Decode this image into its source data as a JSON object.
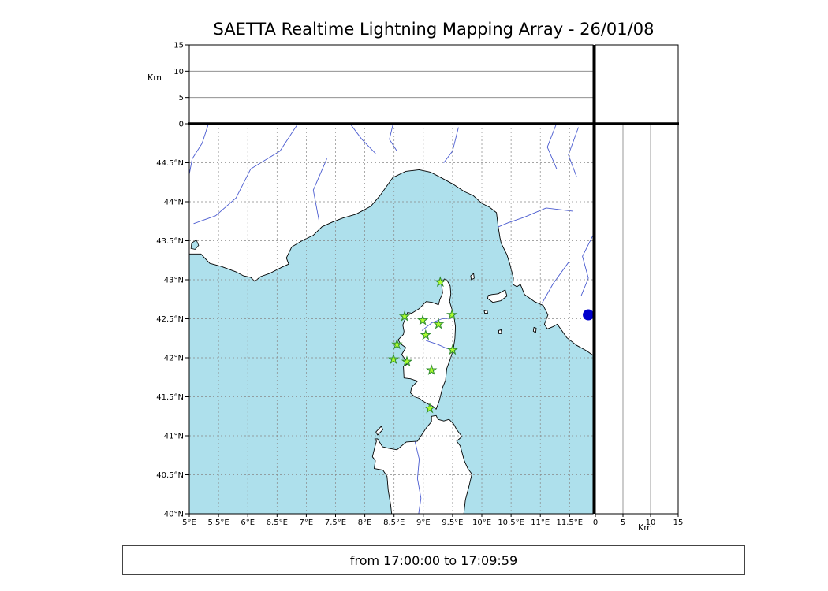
{
  "title": "SAETTA Realtime Lightning Mapping Array - 26/01/08",
  "status_bar": {
    "text": "from 17:00:00 to 17:09:59"
  },
  "labels": {
    "alt_axis_left": "Km",
    "alt_axis_bottom": "Km"
  },
  "colors": {
    "sea": "#aee0ec",
    "land": "#ffffff",
    "coast": "#000000",
    "river": "#4a5bd0",
    "grid": "#888888",
    "station_fill": "#adff2f",
    "station_edge": "#2e8b2e",
    "detection": "#0000cd"
  },
  "map_axes": {
    "lon_range": [
      5.0,
      11.9
    ],
    "lat_range": [
      40.0,
      45.0
    ],
    "lon_ticks": [
      5,
      5.5,
      6,
      6.5,
      7,
      7.5,
      8,
      8.5,
      9,
      9.5,
      10,
      10.5,
      11,
      11.5
    ],
    "lon_tick_labels": [
      "5°E",
      "5.5°E",
      "6°E",
      "6.5°E",
      "7°E",
      "7.5°E",
      "8°E",
      "8.5°E",
      "9°E",
      "9.5°E",
      "10°E",
      "10.5°E",
      "11°E",
      "11.5°E"
    ],
    "lat_ticks": [
      40,
      40.5,
      41,
      41.5,
      42,
      42.5,
      43,
      43.5,
      44,
      44.5
    ],
    "lat_tick_labels": [
      "40°N",
      "40.5°N",
      "41°N",
      "41.5°N",
      "42°N",
      "42.5°N",
      "43°N",
      "43.5°N",
      "44°N",
      "44.5°N"
    ]
  },
  "alt_axes": {
    "range": [
      0,
      15
    ],
    "ticks": [
      0,
      5,
      10,
      15
    ],
    "tick_labels": [
      "0",
      "5",
      "10",
      "15"
    ],
    "gridlines": [
      5,
      10
    ],
    "unit": "Km"
  },
  "chart_data": {
    "type": "scatter",
    "title": "SAETTA Realtime Lightning Mapping Array - 26/01/08",
    "time_window": {
      "from": "17:00:00",
      "to": "17:09:59"
    },
    "map_extent": {
      "lon": [
        5.0,
        11.9
      ],
      "lat": [
        40.0,
        45.0
      ]
    },
    "altitude_km_range": [
      0,
      15
    ],
    "stations": [
      [
        9.29,
        42.97
      ],
      [
        8.68,
        42.53
      ],
      [
        8.99,
        42.48
      ],
      [
        9.49,
        42.55
      ],
      [
        9.26,
        42.43
      ],
      [
        9.04,
        42.29
      ],
      [
        8.55,
        42.17
      ],
      [
        9.5,
        42.1
      ],
      [
        8.49,
        41.98
      ],
      [
        8.72,
        41.95
      ],
      [
        9.14,
        41.84
      ],
      [
        9.11,
        41.35
      ]
    ],
    "detection": {
      "lon": 11.82,
      "lat": 42.55
    }
  },
  "basemap": {
    "land_polygons": [
      {
        "name": "mainland-coast",
        "points": [
          [
            5.0,
            43.33
          ],
          [
            5.2,
            43.33
          ],
          [
            5.35,
            43.21
          ],
          [
            5.55,
            43.17
          ],
          [
            5.8,
            43.1
          ],
          [
            5.93,
            43.05
          ],
          [
            6.05,
            43.03
          ],
          [
            6.12,
            42.98
          ],
          [
            6.22,
            43.04
          ],
          [
            6.37,
            43.08
          ],
          [
            6.58,
            43.16
          ],
          [
            6.7,
            43.2
          ],
          [
            6.66,
            43.28
          ],
          [
            6.75,
            43.42
          ],
          [
            6.95,
            43.51
          ],
          [
            7.12,
            43.57
          ],
          [
            7.27,
            43.68
          ],
          [
            7.45,
            43.74
          ],
          [
            7.62,
            43.79
          ],
          [
            7.85,
            43.84
          ],
          [
            8.1,
            43.94
          ],
          [
            8.25,
            44.07
          ],
          [
            8.48,
            44.31
          ],
          [
            8.7,
            44.39
          ],
          [
            8.93,
            44.41
          ],
          [
            9.12,
            44.38
          ],
          [
            9.3,
            44.31
          ],
          [
            9.52,
            44.22
          ],
          [
            9.7,
            44.13
          ],
          [
            9.85,
            44.08
          ],
          [
            10.0,
            43.98
          ],
          [
            10.13,
            43.93
          ],
          [
            10.25,
            43.86
          ],
          [
            10.28,
            43.68
          ],
          [
            10.31,
            43.54
          ],
          [
            10.33,
            43.47
          ],
          [
            10.43,
            43.32
          ],
          [
            10.48,
            43.2
          ],
          [
            10.54,
            43.02
          ],
          [
            10.53,
            42.94
          ],
          [
            10.6,
            42.91
          ],
          [
            10.66,
            42.94
          ],
          [
            10.73,
            42.81
          ],
          [
            10.9,
            42.72
          ],
          [
            11.05,
            42.67
          ],
          [
            11.13,
            42.55
          ],
          [
            11.07,
            42.43
          ],
          [
            11.12,
            42.37
          ],
          [
            11.22,
            42.4
          ],
          [
            11.29,
            42.43
          ],
          [
            11.45,
            42.26
          ],
          [
            11.62,
            42.16
          ],
          [
            11.79,
            42.09
          ],
          [
            11.92,
            42.02
          ],
          [
            11.98,
            42.02
          ],
          [
            11.98,
            45.1
          ],
          [
            4.94,
            45.1
          ],
          [
            4.94,
            43.33
          ]
        ]
      },
      {
        "name": "corsica",
        "points": [
          [
            9.36,
            43.01
          ],
          [
            9.31,
            42.95
          ],
          [
            9.33,
            42.83
          ],
          [
            9.28,
            42.74
          ],
          [
            9.26,
            42.68
          ],
          [
            9.15,
            42.71
          ],
          [
            9.05,
            42.72
          ],
          [
            8.93,
            42.63
          ],
          [
            8.8,
            42.57
          ],
          [
            8.73,
            42.58
          ],
          [
            8.7,
            42.52
          ],
          [
            8.65,
            42.42
          ],
          [
            8.67,
            42.34
          ],
          [
            8.66,
            42.3
          ],
          [
            8.57,
            42.23
          ],
          [
            8.61,
            42.18
          ],
          [
            8.7,
            42.13
          ],
          [
            8.63,
            42.04
          ],
          [
            8.7,
            41.97
          ],
          [
            8.76,
            41.93
          ],
          [
            8.66,
            41.89
          ],
          [
            8.67,
            41.74
          ],
          [
            8.78,
            41.73
          ],
          [
            8.9,
            41.7
          ],
          [
            8.8,
            41.62
          ],
          [
            8.78,
            41.55
          ],
          [
            8.85,
            41.5
          ],
          [
            8.93,
            41.48
          ],
          [
            9.0,
            41.44
          ],
          [
            9.1,
            41.4
          ],
          [
            9.16,
            41.38
          ],
          [
            9.22,
            41.34
          ],
          [
            9.27,
            41.44
          ],
          [
            9.3,
            41.53
          ],
          [
            9.33,
            41.62
          ],
          [
            9.38,
            41.71
          ],
          [
            9.4,
            41.86
          ],
          [
            9.46,
            41.98
          ],
          [
            9.51,
            42.1
          ],
          [
            9.54,
            42.25
          ],
          [
            9.55,
            42.4
          ],
          [
            9.52,
            42.55
          ],
          [
            9.47,
            42.67
          ],
          [
            9.45,
            42.72
          ],
          [
            9.47,
            42.82
          ],
          [
            9.46,
            42.92
          ],
          [
            9.4,
            43.0
          ]
        ]
      },
      {
        "name": "sardinia",
        "points": [
          [
            8.47,
            39.92
          ],
          [
            8.44,
            40.12
          ],
          [
            8.4,
            40.3
          ],
          [
            8.38,
            40.48
          ],
          [
            8.31,
            40.56
          ],
          [
            8.16,
            40.58
          ],
          [
            8.18,
            40.68
          ],
          [
            8.13,
            40.73
          ],
          [
            8.17,
            40.85
          ],
          [
            8.2,
            40.93
          ],
          [
            8.17,
            40.96
          ],
          [
            8.22,
            40.96
          ],
          [
            8.3,
            40.86
          ],
          [
            8.4,
            40.84
          ],
          [
            8.55,
            40.82
          ],
          [
            8.71,
            40.92
          ],
          [
            8.9,
            40.93
          ],
          [
            9.05,
            41.1
          ],
          [
            9.14,
            41.18
          ],
          [
            9.14,
            41.25
          ],
          [
            9.22,
            41.26
          ],
          [
            9.25,
            41.21
          ],
          [
            9.35,
            41.19
          ],
          [
            9.44,
            41.21
          ],
          [
            9.52,
            41.15
          ],
          [
            9.57,
            41.08
          ],
          [
            9.66,
            40.99
          ],
          [
            9.57,
            40.93
          ],
          [
            9.63,
            40.87
          ],
          [
            9.7,
            40.68
          ],
          [
            9.76,
            40.58
          ],
          [
            9.83,
            40.51
          ],
          [
            9.78,
            40.35
          ],
          [
            9.72,
            40.18
          ],
          [
            9.68,
            39.92
          ]
        ]
      },
      {
        "name": "asinara-island",
        "points": [
          [
            8.22,
            41.01
          ],
          [
            8.31,
            41.08
          ],
          [
            8.28,
            41.12
          ],
          [
            8.19,
            41.05
          ]
        ]
      },
      {
        "name": "elba-island",
        "points": [
          [
            10.1,
            42.76
          ],
          [
            10.19,
            42.71
          ],
          [
            10.32,
            42.73
          ],
          [
            10.43,
            42.79
          ],
          [
            10.4,
            42.87
          ],
          [
            10.28,
            42.82
          ],
          [
            10.17,
            42.81
          ],
          [
            10.11,
            42.8
          ]
        ]
      },
      {
        "name": "capraia-island",
        "points": [
          [
            9.82,
            43.0
          ],
          [
            9.87,
            43.02
          ],
          [
            9.86,
            43.08
          ],
          [
            9.81,
            43.05
          ]
        ]
      },
      {
        "name": "pianosa-island",
        "points": [
          [
            10.05,
            42.57
          ],
          [
            10.1,
            42.57
          ],
          [
            10.09,
            42.61
          ],
          [
            10.04,
            42.6
          ]
        ]
      },
      {
        "name": "montecristo-island",
        "points": [
          [
            10.29,
            42.31
          ],
          [
            10.34,
            42.31
          ],
          [
            10.33,
            42.36
          ],
          [
            10.29,
            42.35
          ]
        ]
      },
      {
        "name": "giglio-island",
        "points": [
          [
            10.88,
            42.34
          ],
          [
            10.92,
            42.32
          ],
          [
            10.93,
            42.38
          ],
          [
            10.89,
            42.39
          ]
        ]
      }
    ],
    "lakes": [
      {
        "name": "etang-de-berre",
        "points": [
          [
            5.03,
            43.4
          ],
          [
            5.1,
            43.39
          ],
          [
            5.16,
            43.44
          ],
          [
            5.12,
            43.51
          ],
          [
            5.04,
            43.47
          ]
        ]
      }
    ],
    "rivers": [
      [
        [
          5.35,
          45.05
        ],
        [
          5.22,
          44.75
        ],
        [
          5.05,
          44.55
        ],
        [
          5.0,
          44.35
        ]
      ],
      [
        [
          6.9,
          45.05
        ],
        [
          6.55,
          44.65
        ],
        [
          6.05,
          44.42
        ],
        [
          5.8,
          44.05
        ],
        [
          5.45,
          43.82
        ],
        [
          5.08,
          43.72
        ]
      ],
      [
        [
          7.35,
          44.55
        ],
        [
          7.12,
          44.15
        ],
        [
          7.22,
          43.75
        ]
      ],
      [
        [
          7.7,
          45.05
        ],
        [
          7.95,
          44.8
        ],
        [
          8.18,
          44.62
        ]
      ],
      [
        [
          8.5,
          45.05
        ],
        [
          8.42,
          44.8
        ],
        [
          8.55,
          44.65
        ]
      ],
      [
        [
          9.6,
          44.95
        ],
        [
          9.5,
          44.65
        ],
        [
          9.35,
          44.5
        ]
      ],
      [
        [
          11.3,
          45.05
        ],
        [
          11.12,
          44.7
        ],
        [
          11.28,
          44.42
        ]
      ],
      [
        [
          11.65,
          44.95
        ],
        [
          11.48,
          44.6
        ],
        [
          11.62,
          44.32
        ]
      ],
      [
        [
          11.55,
          43.88
        ],
        [
          11.1,
          43.92
        ],
        [
          10.72,
          43.8
        ],
        [
          10.45,
          43.73
        ],
        [
          10.29,
          43.68
        ]
      ],
      [
        [
          11.92,
          43.6
        ],
        [
          11.72,
          43.3
        ],
        [
          11.82,
          43.02
        ],
        [
          11.7,
          42.8
        ]
      ],
      [
        [
          11.48,
          43.22
        ],
        [
          11.22,
          42.95
        ],
        [
          11.03,
          42.7
        ]
      ],
      [
        [
          8.98,
          42.35
        ],
        [
          9.15,
          42.45
        ],
        [
          9.32,
          42.5
        ],
        [
          9.52,
          42.51
        ]
      ],
      [
        [
          9.05,
          42.22
        ],
        [
          9.25,
          42.17
        ],
        [
          9.4,
          42.12
        ],
        [
          9.51,
          42.1
        ]
      ],
      [
        [
          8.86,
          40.92
        ],
        [
          8.93,
          40.7
        ],
        [
          8.9,
          40.45
        ],
        [
          8.96,
          40.2
        ],
        [
          8.92,
          40.0
        ]
      ]
    ]
  }
}
